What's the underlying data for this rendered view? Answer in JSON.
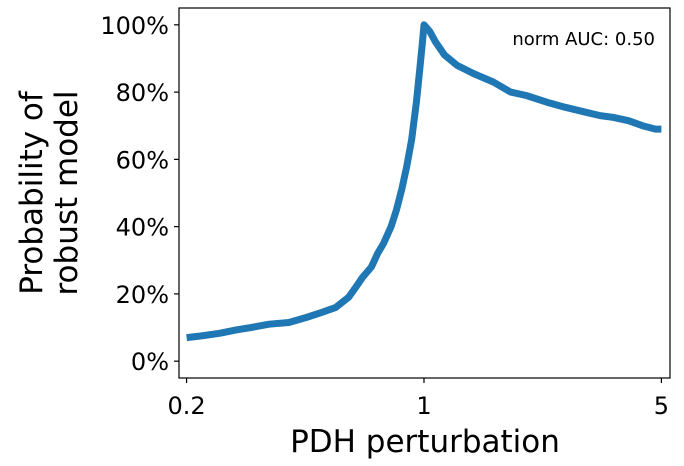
{
  "chart_data": {
    "type": "line",
    "xlabel": "PDH perturbation",
    "ylabel_lines": [
      "Probability of",
      "robust model"
    ],
    "x_scale": "log",
    "xlim": [
      0.19,
      5.3
    ],
    "ylim": [
      -0.05,
      1.05
    ],
    "x_ticks": [
      {
        "value": 0.2,
        "label": "0.2"
      },
      {
        "value": 1,
        "label": "1"
      },
      {
        "value": 5,
        "label": "5"
      }
    ],
    "y_ticks": [
      {
        "value": 0.0,
        "label": "0%"
      },
      {
        "value": 0.2,
        "label": "20%"
      },
      {
        "value": 0.4,
        "label": "40%"
      },
      {
        "value": 0.6,
        "label": "60%"
      },
      {
        "value": 0.8,
        "label": "80%"
      },
      {
        "value": 1.0,
        "label": "100%"
      }
    ],
    "annotation": "norm AUC: 0.50",
    "grid": false,
    "series": [
      {
        "color": "#1f77b4",
        "x": [
          0.2,
          0.22,
          0.25,
          0.28,
          0.31,
          0.35,
          0.4,
          0.45,
          0.5,
          0.55,
          0.6,
          0.63,
          0.66,
          0.7,
          0.73,
          0.76,
          0.8,
          0.83,
          0.86,
          0.89,
          0.92,
          0.95,
          0.97,
          0.99,
          1.0,
          1.04,
          1.08,
          1.15,
          1.25,
          1.4,
          1.6,
          1.8,
          2.0,
          2.3,
          2.6,
          3.0,
          3.3,
          3.6,
          4.0,
          4.4,
          4.8,
          5.0
        ],
        "y": [
          0.07,
          0.075,
          0.083,
          0.093,
          0.1,
          0.11,
          0.115,
          0.13,
          0.145,
          0.16,
          0.19,
          0.22,
          0.25,
          0.28,
          0.32,
          0.35,
          0.4,
          0.45,
          0.51,
          0.58,
          0.66,
          0.77,
          0.86,
          0.95,
          1.0,
          0.98,
          0.95,
          0.91,
          0.88,
          0.855,
          0.83,
          0.8,
          0.79,
          0.77,
          0.755,
          0.74,
          0.73,
          0.725,
          0.715,
          0.7,
          0.69,
          0.69
        ]
      }
    ]
  }
}
